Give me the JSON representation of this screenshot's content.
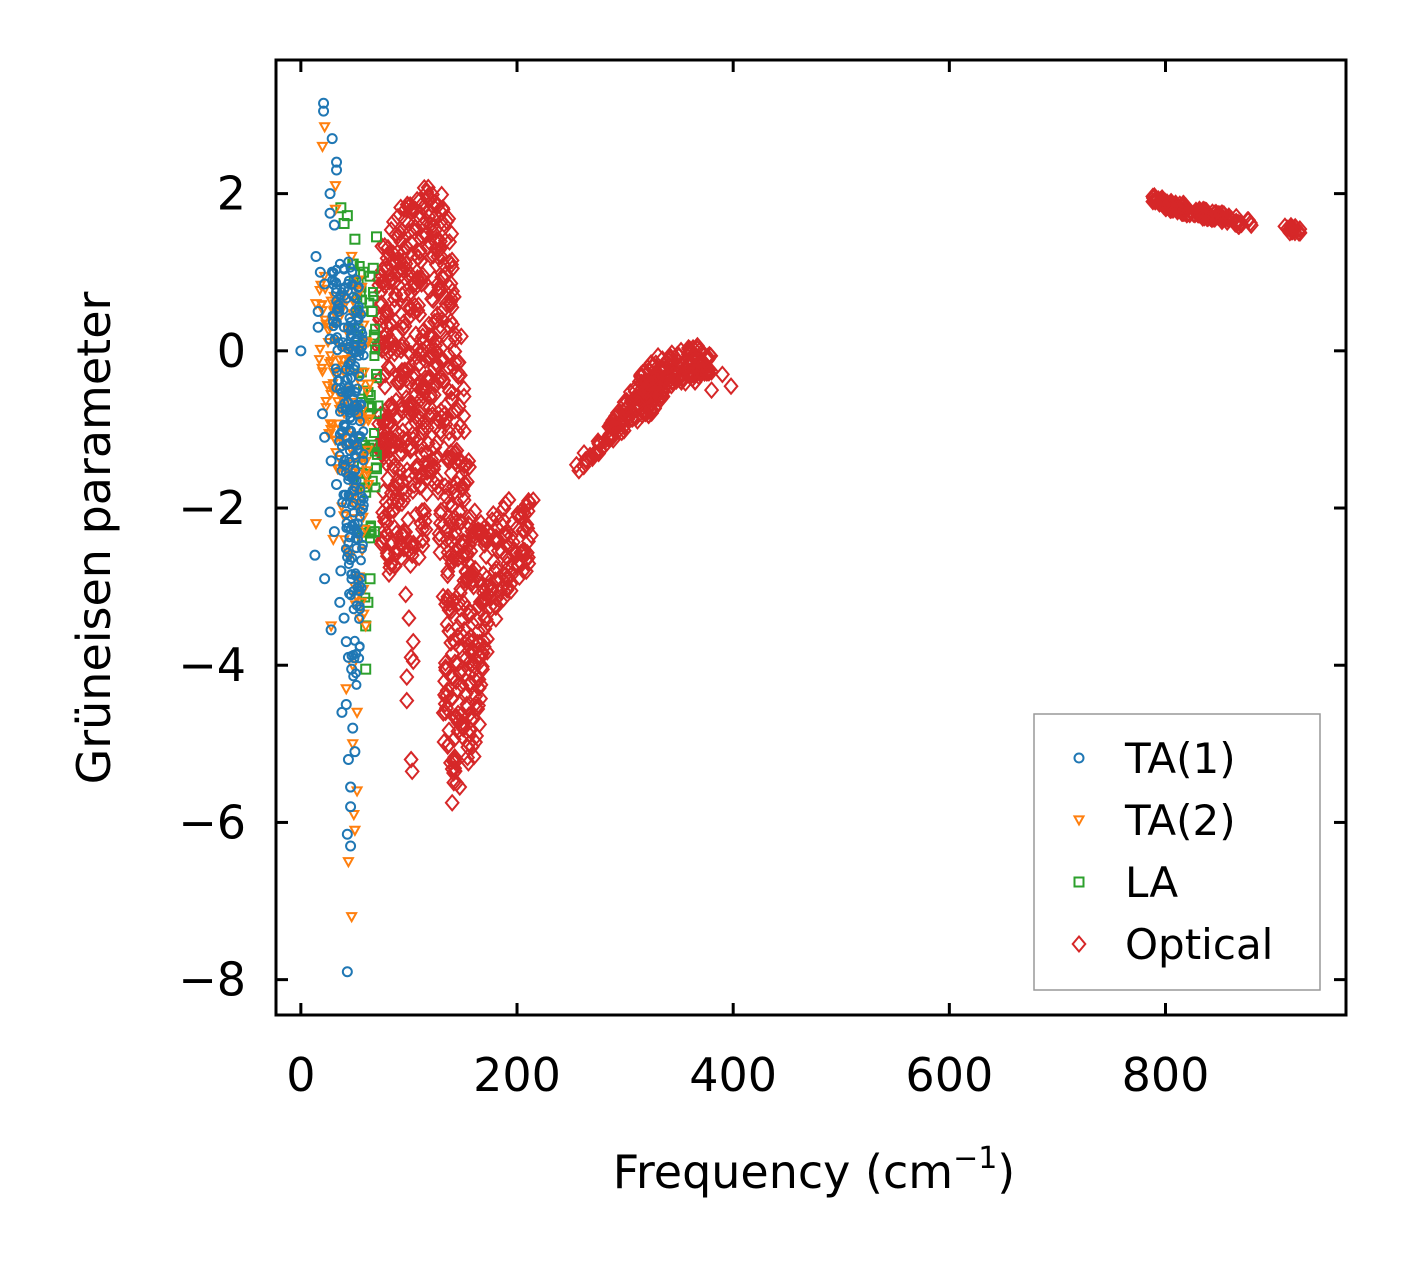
{
  "chart_data": {
    "type": "scatter",
    "title": "",
    "xlabel": "Frequency (cm",
    "xlabel_sup": "−1",
    "xlabel_end": ")",
    "ylabel": "Grüneisen parameter",
    "xlim": [
      -23,
      967
    ],
    "ylim": [
      -8.45,
      3.7
    ],
    "xticks": [
      0,
      200,
      400,
      600,
      800
    ],
    "xtick_labels": [
      "0",
      "200",
      "400",
      "600",
      "800"
    ],
    "yticks": [
      2,
      0,
      -2,
      -4,
      -6,
      -8
    ],
    "ytick_labels": [
      "2",
      "0",
      "−2",
      "−4",
      "−6",
      "−8"
    ],
    "grid": false,
    "legend_position": "lower-right",
    "colors": {
      "ta1": "#1f77b4",
      "ta2": "#ff7f0e",
      "la": "#2ca02c",
      "optical": "#d62728"
    },
    "series": [
      {
        "name": "TA(1)",
        "marker": "circle",
        "color": "#1f77b4",
        "points": [
          [
            0,
            0
          ],
          [
            21,
            3.15
          ],
          [
            21,
            3.05
          ],
          [
            29,
            2.7
          ],
          [
            33,
            2.4
          ],
          [
            33,
            2.3
          ],
          [
            27,
            2.0
          ],
          [
            27,
            1.75
          ],
          [
            31,
            1.6
          ],
          [
            14,
            1.2
          ],
          [
            18,
            1.0
          ],
          [
            22,
            0.85
          ],
          [
            16,
            0.5
          ],
          [
            16,
            0.3
          ],
          [
            27,
            0.15
          ],
          [
            35,
            0.5
          ],
          [
            40,
            0.8
          ],
          [
            44,
            0.3
          ],
          [
            20,
            -0.8
          ],
          [
            22,
            -1.1
          ],
          [
            28,
            -1.4
          ],
          [
            33,
            -1.7
          ],
          [
            27,
            -2.05
          ],
          [
            31,
            -2.3
          ],
          [
            13,
            -2.6
          ],
          [
            22,
            -2.9
          ],
          [
            37,
            -2.8
          ],
          [
            36,
            -3.2
          ],
          [
            28,
            -3.55
          ],
          [
            40,
            -3.4
          ],
          [
            42,
            -3.7
          ],
          [
            44,
            -3.9
          ],
          [
            47,
            -4.05
          ],
          [
            38,
            -4.6
          ],
          [
            42,
            -4.5
          ],
          [
            48,
            -4.8
          ],
          [
            44,
            -5.2
          ],
          [
            50,
            -5.1
          ],
          [
            46,
            -5.55
          ],
          [
            46,
            -5.8
          ],
          [
            43,
            -6.15
          ],
          [
            46,
            -6.3
          ],
          [
            43,
            -7.9
          ]
        ]
      },
      {
        "name": "TA(2)",
        "marker": "triangle-down",
        "color": "#ff7f0e",
        "points": [
          [
            22,
            2.85
          ],
          [
            20,
            2.6
          ],
          [
            32,
            2.1
          ],
          [
            32,
            1.8
          ],
          [
            47,
            1.2
          ],
          [
            53,
            0.9
          ],
          [
            14,
            0.6
          ],
          [
            27,
            0.3
          ],
          [
            40,
            -0.2
          ],
          [
            28,
            -1.0
          ],
          [
            34,
            -1.5
          ],
          [
            14,
            -2.2
          ],
          [
            30,
            -2.4
          ],
          [
            40,
            -2.1
          ],
          [
            46,
            -2.6
          ],
          [
            50,
            -3.0
          ],
          [
            56,
            -3.2
          ],
          [
            28,
            -3.5
          ],
          [
            60,
            -3.5
          ],
          [
            48,
            -4.0
          ],
          [
            42,
            -4.3
          ],
          [
            52,
            -4.6
          ],
          [
            48,
            -5.0
          ],
          [
            52,
            -5.6
          ],
          [
            49,
            -5.9
          ],
          [
            50,
            -6.1
          ],
          [
            44,
            -6.5
          ],
          [
            47,
            -7.2
          ]
        ]
      },
      {
        "name": "LA",
        "marker": "square",
        "color": "#2ca02c",
        "points": [
          [
            37,
            1.82
          ],
          [
            40,
            1.62
          ],
          [
            43,
            1.72
          ],
          [
            50,
            1.42
          ],
          [
            48,
            1.1
          ],
          [
            58,
            1.0
          ],
          [
            55,
            0.75
          ],
          [
            64,
            0.95
          ],
          [
            67,
            1.05
          ],
          [
            70,
            1.45
          ],
          [
            66,
            0.5
          ],
          [
            68,
            0.2
          ],
          [
            70,
            -0.3
          ],
          [
            64,
            -0.8
          ],
          [
            66,
            -1.2
          ],
          [
            70,
            -1.5
          ],
          [
            60,
            -1.8
          ],
          [
            68,
            -2.3
          ],
          [
            64,
            -2.9
          ],
          [
            62,
            -3.2
          ],
          [
            60,
            -3.5
          ],
          [
            60,
            -4.05
          ]
        ]
      },
      {
        "name": "Optical",
        "marker": "diamond",
        "color": "#d62728",
        "points": [
          [
            103,
            -2.6
          ],
          [
            97,
            -3.1
          ],
          [
            100,
            -3.4
          ],
          [
            104,
            -3.7
          ],
          [
            102,
            -3.9
          ],
          [
            104,
            -3.95
          ],
          [
            98,
            -4.15
          ],
          [
            98,
            -4.45
          ],
          [
            102,
            -5.2
          ],
          [
            103,
            -5.35
          ],
          [
            147,
            -5.55
          ],
          [
            140,
            -5.75
          ],
          [
            255,
            -1.45
          ],
          [
            262,
            -1.3
          ],
          [
            275,
            -1.15
          ],
          [
            300,
            -0.75
          ],
          [
            325,
            -0.2
          ],
          [
            345,
            -0.3
          ],
          [
            378,
            -0.05
          ],
          [
            380,
            -0.5
          ],
          [
            390,
            -0.3
          ],
          [
            398,
            -0.45
          ],
          [
            215,
            -1.9
          ],
          [
            200,
            -2.25
          ],
          [
            190,
            -2.9
          ],
          [
            195,
            -2.85
          ]
        ]
      }
    ],
    "clusters": [
      {
        "series": "Optical",
        "envelope": [
          [
            75,
            1.55
          ],
          [
            95,
            1.9
          ],
          [
            115,
            2.1
          ],
          [
            135,
            2.0
          ],
          [
            140,
            1.6
          ],
          [
            143,
            0.5
          ],
          [
            150,
            0.2
          ],
          [
            152,
            -0.8
          ],
          [
            158,
            -1.5
          ],
          [
            165,
            -2.2
          ],
          [
            185,
            -2.0
          ],
          [
            200,
            -1.75
          ],
          [
            212,
            -1.9
          ],
          [
            214,
            -2.2
          ],
          [
            210,
            -2.9
          ],
          [
            200,
            -3.0
          ],
          [
            182,
            -3.3
          ],
          [
            173,
            -4.0
          ],
          [
            165,
            -4.9
          ],
          [
            160,
            -5.2
          ],
          [
            145,
            -5.6
          ],
          [
            138,
            -5.4
          ],
          [
            132,
            -5.0
          ],
          [
            130,
            -4.5
          ],
          [
            135,
            -3.5
          ],
          [
            130,
            -3.0
          ],
          [
            125,
            -1.8
          ],
          [
            120,
            -1.5
          ],
          [
            115,
            -2.5
          ],
          [
            110,
            -2.7
          ],
          [
            100,
            -2.75
          ],
          [
            90,
            -2.85
          ],
          [
            75,
            -2.9
          ],
          [
            72,
            -1.0
          ],
          [
            72,
            0.8
          ]
        ],
        "count": 900,
        "size": 6
      },
      {
        "series": "Optical",
        "envelope": [
          [
            255,
            -1.55
          ],
          [
            270,
            -1.25
          ],
          [
            290,
            -0.85
          ],
          [
            305,
            -0.5
          ],
          [
            318,
            -0.2
          ],
          [
            330,
            -0.05
          ],
          [
            350,
            0.0
          ],
          [
            368,
            0.1
          ],
          [
            378,
            0.0
          ],
          [
            385,
            -0.25
          ],
          [
            360,
            -0.45
          ],
          [
            345,
            -0.4
          ],
          [
            325,
            -0.8
          ],
          [
            305,
            -0.95
          ],
          [
            288,
            -1.15
          ],
          [
            272,
            -1.35
          ],
          [
            258,
            -1.55
          ]
        ],
        "count": 260,
        "size": 6
      },
      {
        "series": "Optical",
        "envelope": [
          [
            788,
            1.98
          ],
          [
            810,
            1.9
          ],
          [
            830,
            1.82
          ],
          [
            855,
            1.75
          ],
          [
            880,
            1.65
          ],
          [
            880,
            1.55
          ],
          [
            855,
            1.62
          ],
          [
            830,
            1.7
          ],
          [
            810,
            1.76
          ],
          [
            788,
            1.86
          ]
        ],
        "count": 140,
        "size": 6
      },
      {
        "series": "Optical",
        "envelope": [
          [
            910,
            1.6
          ],
          [
            925,
            1.58
          ],
          [
            926,
            1.5
          ],
          [
            912,
            1.5
          ]
        ],
        "count": 20,
        "size": 6
      },
      {
        "series": "TA(1)",
        "envelope": [
          [
            28,
            1.0
          ],
          [
            42,
            1.2
          ],
          [
            55,
            0.8
          ],
          [
            60,
            -0.5
          ],
          [
            58,
            -2.5
          ],
          [
            55,
            -4.5
          ],
          [
            48,
            -4.2
          ],
          [
            40,
            -2.5
          ],
          [
            35,
            -1.2
          ],
          [
            30,
            0.0
          ]
        ],
        "count": 260,
        "size": 4
      },
      {
        "series": "TA(2)",
        "envelope": [
          [
            18,
            1.0
          ],
          [
            38,
            1.0
          ],
          [
            60,
            0.8
          ],
          [
            66,
            -1.0
          ],
          [
            62,
            -3.4
          ],
          [
            50,
            -3.5
          ],
          [
            38,
            -2.2
          ],
          [
            25,
            -1.0
          ],
          [
            15,
            0.0
          ]
        ],
        "count": 140,
        "size": 4
      },
      {
        "series": "LA",
        "envelope": [
          [
            48,
            1.3
          ],
          [
            62,
            1.0
          ],
          [
            70,
            0.6
          ],
          [
            72,
            -0.8
          ],
          [
            68,
            -2.4
          ],
          [
            60,
            -3.3
          ],
          [
            55,
            -2.0
          ],
          [
            50,
            0.0
          ]
        ],
        "count": 60,
        "size": 4
      }
    ]
  }
}
